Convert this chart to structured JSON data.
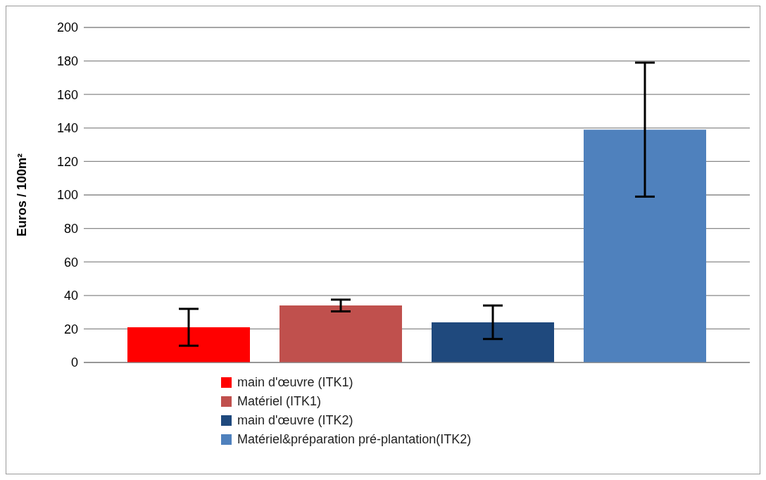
{
  "chart_data": {
    "type": "bar",
    "ylabel": "Euros / 100m²",
    "categories": [
      null
    ],
    "series": [
      {
        "name": "main d'œuvre (ITK1)",
        "color": "#ff0000",
        "values": [
          21
        ],
        "errors": [
          11
        ]
      },
      {
        "name": "Matériel (ITK1)",
        "color": "#c0504d",
        "values": [
          34
        ],
        "errors": [
          3.5
        ]
      },
      {
        "name": "main d'œuvre (ITK2)",
        "color": "#1f497d",
        "values": [
          24
        ],
        "errors": [
          10
        ]
      },
      {
        "name": "Matériel&préparation pré-plantation(ITK2)",
        "color": "#4f81bd",
        "values": [
          139
        ],
        "errors": [
          40
        ]
      }
    ],
    "ylim": [
      0,
      200
    ],
    "yticks": [
      0,
      20,
      40,
      60,
      80,
      100,
      120,
      140,
      160,
      180,
      200
    ],
    "grid": "y",
    "legend": "bottom"
  }
}
